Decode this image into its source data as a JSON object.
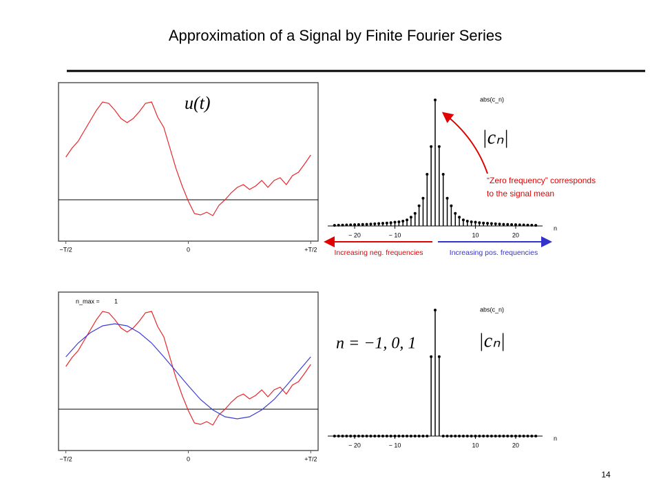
{
  "slide": {
    "title": "Approximation of a Signal by Finite Fourier Series",
    "page_number": "14"
  },
  "chart_data": [
    {
      "type": "line",
      "annotation": "u(t)",
      "xlim": [
        -0.53,
        0.53
      ],
      "ylim": [
        -0.6,
        1.7
      ],
      "xticks": [
        {
          "value": -0.5,
          "label": "−T/2"
        },
        0,
        {
          "value": 0.5,
          "label": "+T/2"
        }
      ],
      "hline": 0,
      "series": [
        {
          "color": "#e8262b",
          "x": [
            -0.5,
            -0.475,
            -0.45,
            -0.425,
            -0.4,
            -0.375,
            -0.35,
            -0.325,
            -0.3,
            -0.275,
            -0.25,
            -0.225,
            -0.2,
            -0.175,
            -0.15,
            -0.125,
            -0.1,
            -0.075,
            -0.05,
            -0.025,
            0,
            0.025,
            0.05,
            0.075,
            0.1,
            0.125,
            0.15,
            0.175,
            0.2,
            0.225,
            0.25,
            0.275,
            0.3,
            0.325,
            0.35,
            0.375,
            0.4,
            0.425,
            0.45,
            0.475,
            0.5
          ],
          "values": [
            0.62,
            0.75,
            0.85,
            1.0,
            1.15,
            1.3,
            1.42,
            1.4,
            1.3,
            1.18,
            1.12,
            1.18,
            1.28,
            1.4,
            1.42,
            1.2,
            1.05,
            0.75,
            0.45,
            0.2,
            -0.02,
            -0.2,
            -0.22,
            -0.18,
            -0.23,
            -0.08,
            0.0,
            0.1,
            0.18,
            0.22,
            0.15,
            0.2,
            0.28,
            0.18,
            0.28,
            0.32,
            0.22,
            0.35,
            0.4,
            0.52,
            0.65
          ]
        }
      ]
    },
    {
      "type": "stem",
      "ylabel": "abs(c_n)",
      "xlabel": "n",
      "annotation": "|cₙ|",
      "note": [
        "“Zero frequency” corresponds",
        "to the signal mean"
      ],
      "arrow_labels": {
        "negative": "Increasing neg. frequencies",
        "positive": "Increasing pos. frequencies"
      },
      "xlim": [
        -26,
        26
      ],
      "ylim": [
        0,
        1.05
      ],
      "xticks": [
        {
          "value": -20,
          "label": "− 20"
        },
        {
          "value": -10,
          "label": "− 10"
        },
        10,
        20
      ],
      "color": "#000000",
      "x": [
        -25,
        -24,
        -23,
        -22,
        -21,
        -20,
        -19,
        -18,
        -17,
        -16,
        -15,
        -14,
        -13,
        -12,
        -11,
        -10,
        -9,
        -8,
        -7,
        -6,
        -5,
        -4,
        -3,
        -2,
        -1,
        0,
        1,
        2,
        3,
        4,
        5,
        6,
        7,
        8,
        9,
        10,
        11,
        12,
        13,
        14,
        15,
        16,
        17,
        18,
        19,
        20,
        21,
        22,
        23,
        24,
        25
      ],
      "values": [
        0.005,
        0.006,
        0.007,
        0.008,
        0.009,
        0.01,
        0.011,
        0.012,
        0.013,
        0.015,
        0.017,
        0.019,
        0.021,
        0.023,
        0.026,
        0.03,
        0.033,
        0.038,
        0.048,
        0.07,
        0.1,
        0.16,
        0.22,
        0.41,
        0.63,
        1,
        0.63,
        0.41,
        0.22,
        0.16,
        0.1,
        0.07,
        0.048,
        0.038,
        0.033,
        0.03,
        0.026,
        0.023,
        0.021,
        0.019,
        0.017,
        0.015,
        0.013,
        0.012,
        0.011,
        0.01,
        0.009,
        0.008,
        0.007,
        0.006,
        0.005
      ]
    },
    {
      "type": "line",
      "annotation": "n_max =",
      "annotation_value": "1",
      "xlim": [
        -0.53,
        0.53
      ],
      "ylim": [
        -0.6,
        1.7
      ],
      "xticks": [
        {
          "value": -0.5,
          "label": "−T/2"
        },
        0,
        {
          "value": 0.5,
          "label": "+T/2"
        }
      ],
      "hline": 0,
      "series": [
        {
          "color": "#e8262b",
          "x": [
            -0.5,
            -0.475,
            -0.45,
            -0.425,
            -0.4,
            -0.375,
            -0.35,
            -0.325,
            -0.3,
            -0.275,
            -0.25,
            -0.225,
            -0.2,
            -0.175,
            -0.15,
            -0.125,
            -0.1,
            -0.075,
            -0.05,
            -0.025,
            0,
            0.025,
            0.05,
            0.075,
            0.1,
            0.125,
            0.15,
            0.175,
            0.2,
            0.225,
            0.25,
            0.275,
            0.3,
            0.325,
            0.35,
            0.375,
            0.4,
            0.425,
            0.45,
            0.475,
            0.5
          ],
          "values": [
            0.62,
            0.75,
            0.85,
            1.0,
            1.15,
            1.3,
            1.42,
            1.4,
            1.3,
            1.18,
            1.12,
            1.18,
            1.28,
            1.4,
            1.42,
            1.2,
            1.05,
            0.75,
            0.45,
            0.2,
            -0.02,
            -0.2,
            -0.22,
            -0.18,
            -0.23,
            -0.08,
            0.0,
            0.1,
            0.18,
            0.22,
            0.15,
            0.2,
            0.28,
            0.18,
            0.28,
            0.32,
            0.22,
            0.35,
            0.4,
            0.52,
            0.65
          ]
        },
        {
          "color": "#3b3bd6",
          "x": [
            -0.5,
            -0.45,
            -0.4,
            -0.35,
            -0.3,
            -0.25,
            -0.2,
            -0.15,
            -0.1,
            -0.05,
            0,
            0.05,
            0.1,
            0.15,
            0.2,
            0.25,
            0.3,
            0.35,
            0.4,
            0.45,
            0.5
          ],
          "values": [
            0.76,
            0.96,
            1.11,
            1.21,
            1.24,
            1.21,
            1.11,
            0.96,
            0.76,
            0.55,
            0.34,
            0.14,
            -0.01,
            -0.11,
            -0.14,
            -0.11,
            -0.01,
            0.14,
            0.34,
            0.55,
            0.76
          ]
        }
      ]
    },
    {
      "type": "stem",
      "ylabel": "abs(c_n)",
      "xlabel": "n",
      "annotation": "|cₙ|",
      "formula": "n = −1, 0, 1",
      "xlim": [
        -26,
        26
      ],
      "ylim": [
        0,
        1.05
      ],
      "xticks": [
        {
          "value": -20,
          "label": "− 20"
        },
        {
          "value": -10,
          "label": "− 10"
        },
        10,
        20
      ],
      "color": "#000000",
      "x": [
        -25,
        -24,
        -23,
        -22,
        -21,
        -20,
        -19,
        -18,
        -17,
        -16,
        -15,
        -14,
        -13,
        -12,
        -11,
        -10,
        -9,
        -8,
        -7,
        -6,
        -5,
        -4,
        -3,
        -2,
        -1,
        0,
        1,
        2,
        3,
        4,
        5,
        6,
        7,
        8,
        9,
        10,
        11,
        12,
        13,
        14,
        15,
        16,
        17,
        18,
        19,
        20,
        21,
        22,
        23,
        24,
        25
      ],
      "values": [
        0,
        0,
        0,
        0,
        0,
        0,
        0,
        0,
        0,
        0,
        0,
        0,
        0,
        0,
        0,
        0,
        0,
        0,
        0,
        0,
        0,
        0,
        0,
        0,
        0.63,
        1,
        0.63,
        0,
        0,
        0,
        0,
        0,
        0,
        0,
        0,
        0,
        0,
        0,
        0,
        0,
        0,
        0,
        0,
        0,
        0,
        0,
        0,
        0,
        0,
        0,
        0
      ]
    }
  ]
}
